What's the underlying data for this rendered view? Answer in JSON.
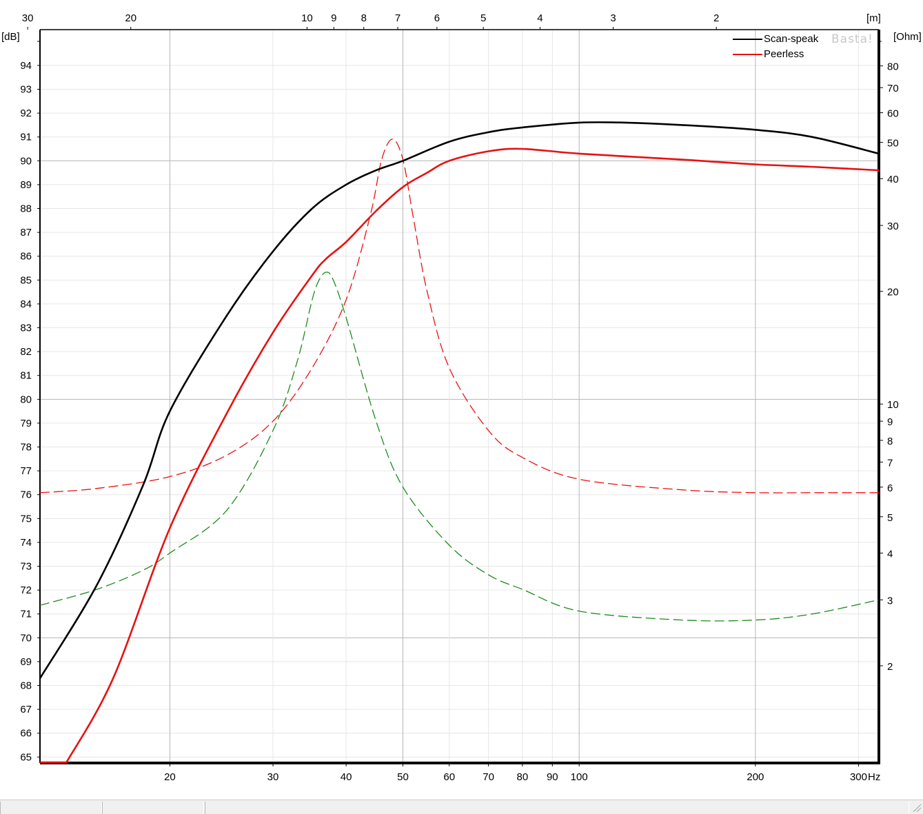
{
  "chart_data": {
    "type": "line",
    "x_scale": "log",
    "xlim": [
      12,
      325
    ],
    "ylim": [
      64.75,
      95.5
    ],
    "ohm_lim": [
      1.1,
      100
    ],
    "x_unit_label": "Hz",
    "y_left_label": "[dB]",
    "y_right_label": "[Ohm]",
    "top_axis_label": "[m]",
    "x_ticks": [
      20,
      30,
      40,
      50,
      60,
      70,
      80,
      90,
      100,
      200,
      300
    ],
    "x_tick_labels": [
      "20",
      "30",
      "40",
      "50",
      "60",
      "70",
      "80",
      "90",
      "100",
      "200",
      "300"
    ],
    "y_ticks": [
      65,
      66,
      67,
      68,
      69,
      70,
      71,
      72,
      73,
      74,
      75,
      76,
      77,
      78,
      79,
      80,
      81,
      82,
      83,
      84,
      85,
      86,
      87,
      88,
      89,
      90,
      91,
      92,
      93,
      94
    ],
    "ohm_ticks": [
      2,
      3,
      4,
      5,
      6,
      7,
      8,
      9,
      10,
      20,
      30,
      40,
      50,
      60,
      70,
      80
    ],
    "wavelength_ticks": [
      30,
      20,
      10,
      9,
      8,
      7,
      6,
      5,
      4,
      3,
      2
    ],
    "grid_x_major": [
      20,
      50,
      100,
      200
    ],
    "grid_y_major": [
      70,
      80,
      90
    ],
    "watermark": "Basta!",
    "legend_position": "top-right",
    "legend": [
      {
        "name": "Scan-speak",
        "color": "#000000"
      },
      {
        "name": "Peerless",
        "color": "#e81010"
      }
    ],
    "series": [
      {
        "name": "Scan-speak",
        "kind": "spl",
        "color": "#000000",
        "x": [
          12,
          15,
          18,
          20,
          25,
          30,
          35,
          40,
          45,
          50,
          60,
          70,
          80,
          100,
          120,
          150,
          200,
          250,
          325
        ],
        "y": [
          68.3,
          72.2,
          76.4,
          79.5,
          83.5,
          86.2,
          88.0,
          89.0,
          89.6,
          90.0,
          90.8,
          91.2,
          91.4,
          91.6,
          91.6,
          91.5,
          91.3,
          91.0,
          90.3
        ]
      },
      {
        "name": "Peerless",
        "kind": "spl",
        "color": "#e81010",
        "x": [
          13.3,
          16,
          20,
          25,
          30,
          35,
          37,
          40,
          45,
          50,
          55,
          60,
          70,
          80,
          100,
          150,
          200,
          250,
          325
        ],
        "y": [
          64.75,
          68.3,
          74.6,
          79.4,
          82.8,
          85.2,
          85.9,
          86.6,
          87.9,
          88.9,
          89.5,
          90.0,
          90.4,
          90.5,
          90.3,
          90.05,
          89.85,
          89.75,
          89.6
        ]
      },
      {
        "name": "Scan-speak",
        "kind": "impedance",
        "color": "#1a8a1a",
        "x": [
          12,
          15,
          18,
          20,
          25,
          30,
          33,
          35,
          36,
          37,
          38,
          40,
          45,
          50,
          60,
          70,
          80,
          100,
          150,
          200,
          250,
          325
        ],
        "y": [
          2.9,
          3.2,
          3.6,
          4.0,
          5.2,
          8.5,
          13.0,
          19.0,
          21.5,
          22.5,
          21.5,
          17.0,
          9.0,
          6.0,
          4.2,
          3.5,
          3.2,
          2.8,
          2.65,
          2.65,
          2.75,
          3.0
        ]
      },
      {
        "name": "Peerless",
        "kind": "impedance",
        "color": "#e81010",
        "x": [
          12,
          15,
          20,
          25,
          30,
          35,
          40,
          44,
          46,
          48,
          50,
          52,
          55,
          60,
          70,
          80,
          100,
          150,
          200,
          250,
          325
        ],
        "y": [
          5.8,
          5.95,
          6.4,
          7.3,
          9.0,
          12.5,
          19.0,
          32.0,
          45.0,
          51.0,
          45.0,
          32.0,
          20.0,
          12.5,
          8.5,
          7.2,
          6.3,
          5.9,
          5.8,
          5.8,
          5.8
        ]
      }
    ]
  }
}
